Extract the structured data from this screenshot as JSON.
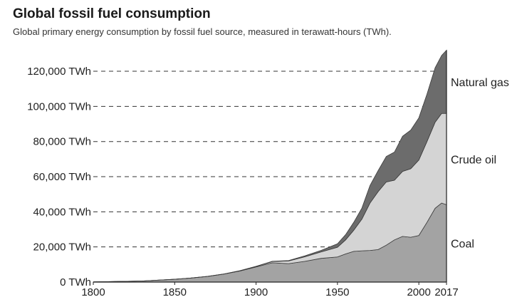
{
  "chart_data": {
    "type": "area",
    "stacked": true,
    "title": "Global fossil fuel consumption",
    "subtitle": "Global primary energy consumption by fossil fuel source, measured in terawatt-hours (TWh).",
    "xlabel": "",
    "ylabel": "",
    "xlim": [
      1800,
      2017
    ],
    "ylim": [
      0,
      133000
    ],
    "x_ticks": [
      "1800",
      "1850",
      "1900",
      "1950",
      "2000",
      "2017"
    ],
    "y_ticks": [
      "0 TWh",
      "20,000 TWh",
      "40,000 TWh",
      "60,000 TWh",
      "80,000 TWh",
      "100,000 TWh",
      "120,000 TWh"
    ],
    "y_tick_values": [
      0,
      20000,
      40000,
      60000,
      80000,
      100000,
      120000
    ],
    "grid": "horizontal-dashed",
    "legend": "inline-right",
    "x": [
      1800,
      1830,
      1850,
      1860,
      1870,
      1880,
      1890,
      1900,
      1910,
      1920,
      1930,
      1940,
      1950,
      1955,
      1960,
      1965,
      1970,
      1975,
      1980,
      1985,
      1990,
      1995,
      2000,
      2005,
      2010,
      2014,
      2017
    ],
    "series": [
      {
        "name": "Coal",
        "color": "#a3a3a3",
        "values": [
          97,
          600,
          1600,
          2300,
          3200,
          4500,
          6300,
          8600,
          11000,
          10500,
          11800,
          13500,
          14300,
          16000,
          17500,
          17800,
          18000,
          18500,
          21000,
          24000,
          26000,
          25500,
          26500,
          34000,
          42000,
          45000,
          44000
        ]
      },
      {
        "name": "Crude oil",
        "color": "#d4d4d4",
        "values": [
          0,
          0,
          0,
          0,
          20,
          60,
          150,
          300,
          700,
          1500,
          2600,
          3700,
          5500,
          8000,
          12000,
          18000,
          27000,
          33000,
          36000,
          34000,
          37000,
          39000,
          43000,
          46000,
          49000,
          51000,
          52000
        ]
      },
      {
        "name": "Natural gas",
        "color": "#6c6c6c",
        "values": [
          0,
          0,
          0,
          0,
          0,
          20,
          40,
          70,
          150,
          250,
          550,
          850,
          2000,
          3000,
          4500,
          6300,
          10000,
          12000,
          14500,
          16000,
          20000,
          22000,
          24000,
          27000,
          31000,
          33000,
          36000
        ]
      }
    ]
  }
}
